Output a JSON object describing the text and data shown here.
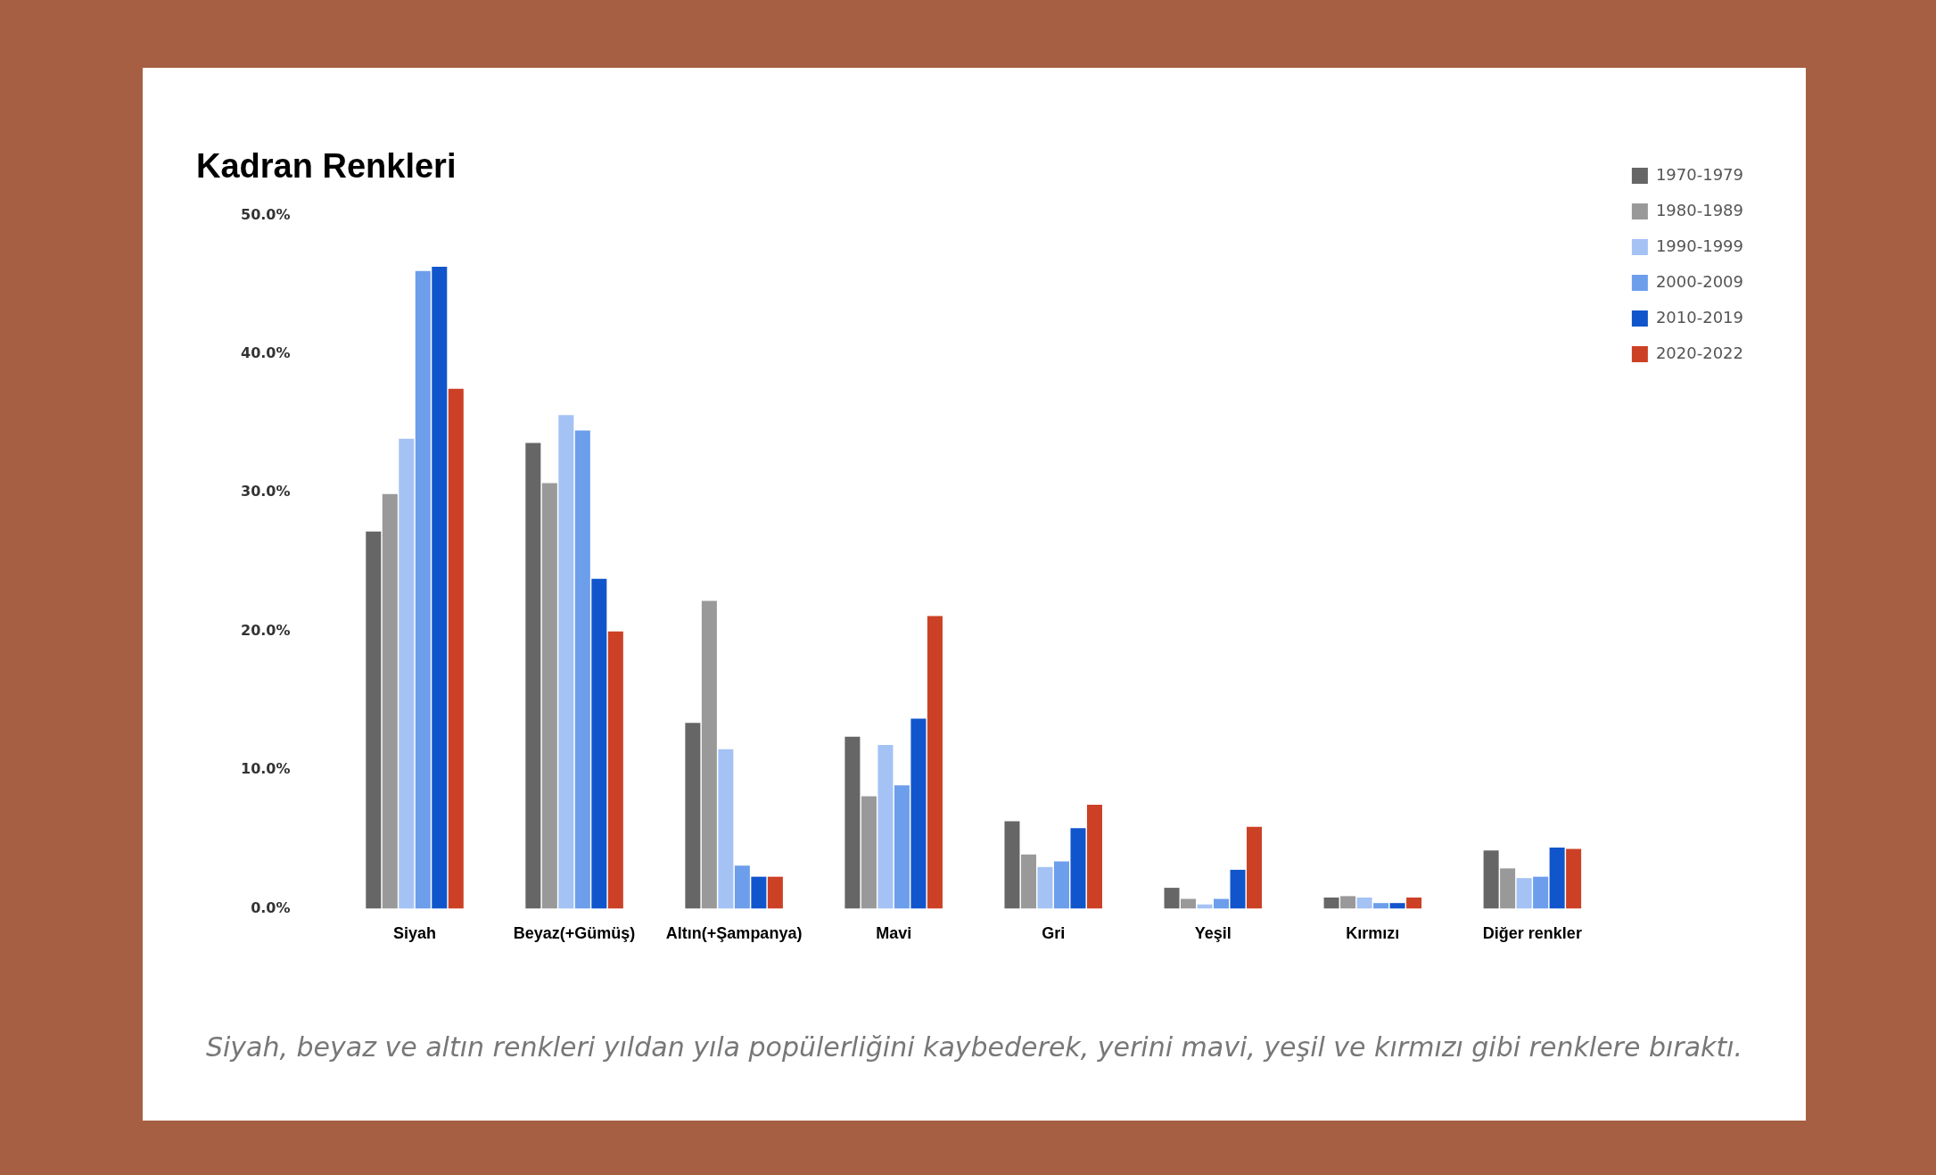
{
  "chart_data": {
    "type": "bar",
    "title": "Kadran Renkleri",
    "categories": [
      "Siyah",
      "Beyaz(+Gümüş)",
      "Altın(+Şampanya)",
      "Mavi",
      "Gri",
      "Yeşil",
      "Kırmızı",
      "Diğer renkler"
    ],
    "series": [
      {
        "name": "1970-1979",
        "color": "#666666",
        "values": [
          27.2,
          33.6,
          13.4,
          12.4,
          6.3,
          1.5,
          0.8,
          4.2
        ]
      },
      {
        "name": "1980-1989",
        "color": "#999999",
        "values": [
          29.9,
          30.7,
          22.2,
          8.1,
          3.9,
          0.7,
          0.9,
          2.9
        ]
      },
      {
        "name": "1990-1999",
        "color": "#a4c2f4",
        "values": [
          33.9,
          35.6,
          11.5,
          11.8,
          3.0,
          0.3,
          0.8,
          2.2
        ]
      },
      {
        "name": "2000-2009",
        "color": "#6d9eeb",
        "values": [
          46.0,
          34.5,
          3.1,
          8.9,
          3.4,
          0.7,
          0.4,
          2.3
        ]
      },
      {
        "name": "2010-2019",
        "color": "#1155cc",
        "values": [
          46.3,
          23.8,
          2.3,
          13.7,
          5.8,
          2.8,
          0.4,
          4.4
        ]
      },
      {
        "name": "2020-2022",
        "color": "#cc4125",
        "values": [
          37.5,
          20.0,
          2.3,
          21.1,
          7.5,
          5.9,
          0.8,
          4.3
        ]
      }
    ],
    "ylim": [
      0,
      50
    ],
    "yticks": [
      {
        "value": 0,
        "label": "0.0%"
      },
      {
        "value": 10,
        "label": "10.0%"
      },
      {
        "value": 20,
        "label": "20.0%"
      },
      {
        "value": 30,
        "label": "30.0%"
      },
      {
        "value": 40,
        "label": "40.0%"
      },
      {
        "value": 50,
        "label": "50.0%"
      }
    ],
    "grid": false,
    "legend": "top right",
    "annotations": [
      "Siyah, beyaz ve altın renkleri yıldan yıla popülerliğini kaybederek, yerini mavi, yeşil ve kırmızı gibi renklere bıraktı."
    ]
  }
}
